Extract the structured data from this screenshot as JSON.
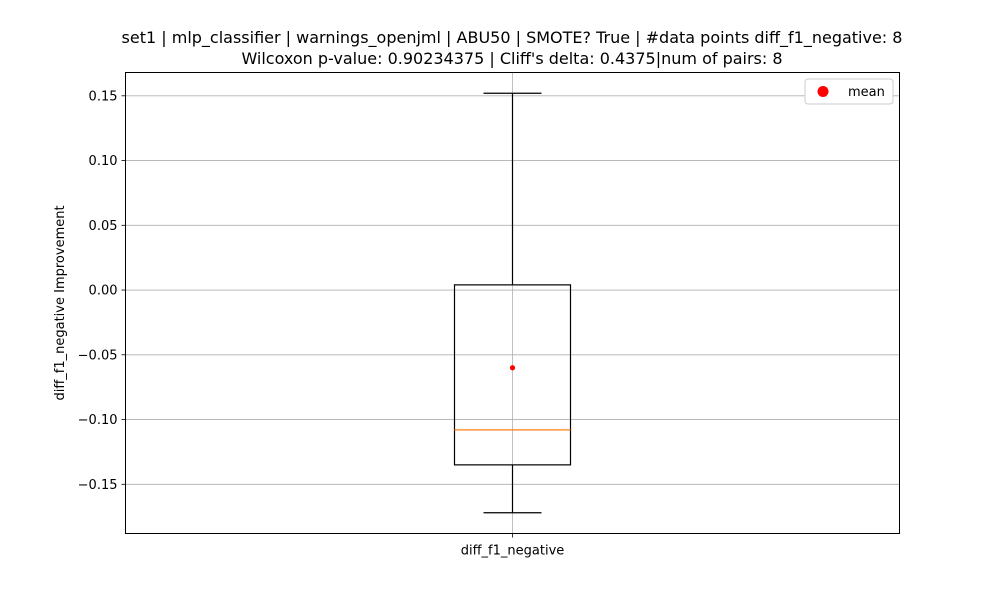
{
  "chart_data": {
    "type": "box",
    "title_line1": "set1 | mlp_classifier | warnings_openjml | ABU50 | SMOTE? True | #data points diff_f1_negative: 8",
    "title_line2": "Wilcoxon p-value: 0.90234375 | Cliff's delta: 0.4375|num of pairs: 8",
    "ylabel": "diff_f1_negative Improvement",
    "xlabel": "",
    "categories": [
      "diff_f1_negative"
    ],
    "ylim": [
      -0.188,
      0.168
    ],
    "yticks": [
      0.15,
      0.1,
      0.05,
      0.0,
      -0.05,
      -0.1,
      -0.15
    ],
    "ytick_labels": [
      "0.15",
      "0.10",
      "0.05",
      "0.00",
      "−0.05",
      "−0.10",
      "−0.15"
    ],
    "grid": true,
    "boxes": [
      {
        "category": "diff_f1_negative",
        "whisker_low": -0.172,
        "q1": -0.135,
        "median": -0.108,
        "q3": 0.004,
        "whisker_high": 0.152,
        "mean": -0.06
      }
    ],
    "legend": {
      "placement": "top-right",
      "entries": [
        {
          "label": "mean",
          "marker": "circle"
        }
      ]
    },
    "colors": {
      "box": "#000000",
      "median": "#ff7f0e",
      "mean": "#ff0000",
      "grid": "#b0b0b0"
    }
  }
}
